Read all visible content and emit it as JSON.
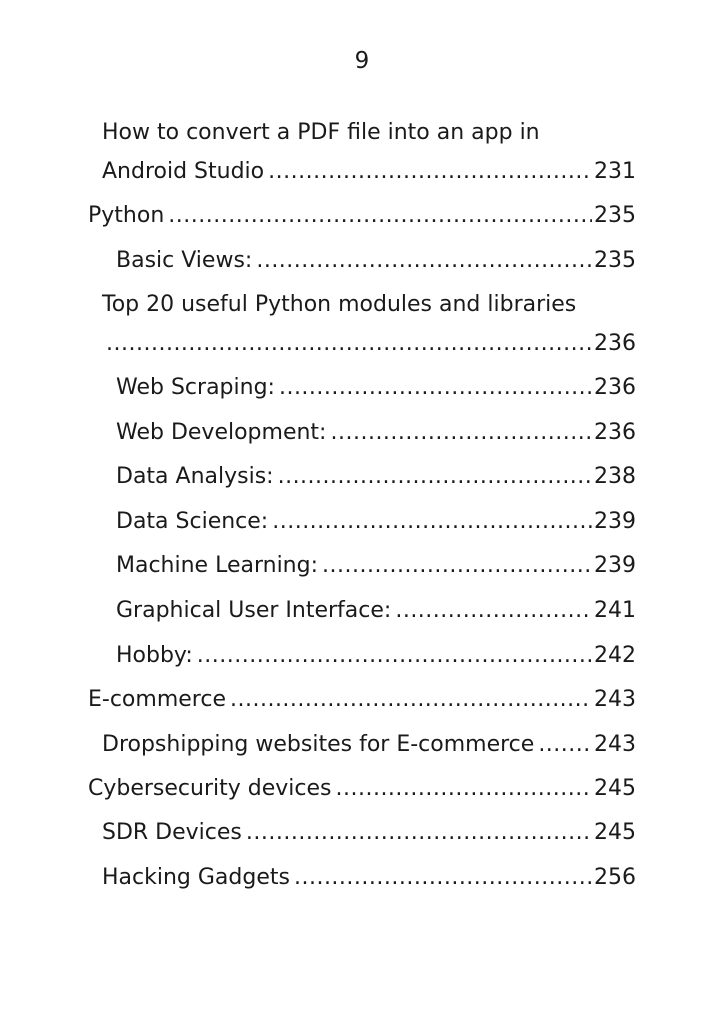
{
  "header": {
    "page_number": "9"
  },
  "toc": {
    "entries": [
      {
        "line1": "How to convert a PDF file into an app in",
        "title": "Android Studio",
        "page": "231"
      },
      {
        "title": "Python",
        "page": "235"
      },
      {
        "title": "Basic Views:",
        "page": "235"
      },
      {
        "line1": "Top 20 useful Python modules and libraries",
        "title": "",
        "page": "236"
      },
      {
        "title": "Web Scraping:",
        "page": "236"
      },
      {
        "title": "Web Development:",
        "page": "236"
      },
      {
        "title": "Data Analysis:",
        "page": "238"
      },
      {
        "title": "Data Science:",
        "page": "239"
      },
      {
        "title": "Machine Learning: ",
        "page": "239"
      },
      {
        "title": "Graphical User Interface:",
        "page": "241"
      },
      {
        "title": "Hobby:",
        "page": "242"
      },
      {
        "title": "E-commerce",
        "page": "243"
      },
      {
        "title": "Dropshipping websites for E-commerce",
        "page": "243"
      },
      {
        "title": "Cybersecurity devices",
        "page": "245"
      },
      {
        "title": "SDR Devices ",
        "page": "245"
      },
      {
        "title": "Hacking Gadgets",
        "page": "256"
      }
    ]
  }
}
